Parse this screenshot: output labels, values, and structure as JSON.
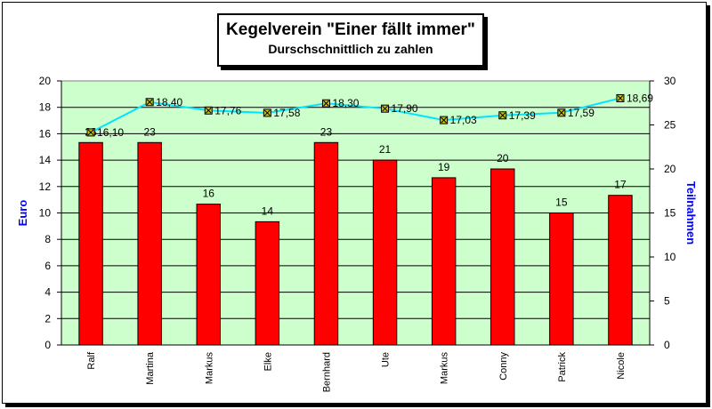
{
  "chart_data": {
    "type": "bar",
    "title": "Kegelverein \"Einer fällt immer\"",
    "subtitle": "Durschschnittlich zu zahlen",
    "categories": [
      "Ralf",
      "Martina",
      "Markus",
      "Elke",
      "Bernhard",
      "Ute",
      "Markus",
      "Conny",
      "Patrick",
      "Nicole"
    ],
    "series": [
      {
        "values": [
          23,
          23,
          16,
          14,
          23,
          21,
          19,
          20,
          15,
          17
        ],
        "axis": "right",
        "type": "bar",
        "color": "#ff0000",
        "labels": [
          "23",
          "23",
          "16",
          "14",
          "23",
          "21",
          "19",
          "20",
          "15",
          "17"
        ]
      },
      {
        "values": [
          16.1,
          18.4,
          17.76,
          17.58,
          18.3,
          17.9,
          17.03,
          17.39,
          17.59,
          18.69
        ],
        "axis": "left",
        "type": "line",
        "color": "#00e5ff",
        "labels": [
          "16,10",
          "18,40",
          "17,76",
          "17,58",
          "18,30",
          "17,90",
          "17,03",
          "17,39",
          "17,59",
          "18,69"
        ]
      }
    ],
    "ylabel": "Euro",
    "ylabel2": "Teilnahmen",
    "ylim": [
      0,
      20
    ],
    "ylim2": [
      0,
      30
    ],
    "yticks": [
      "0",
      "2",
      "4",
      "6",
      "8",
      "10",
      "12",
      "14",
      "16",
      "18",
      "20"
    ],
    "yticks2": [
      "0",
      "5",
      "10",
      "15",
      "20",
      "25",
      "30"
    ],
    "grid": true,
    "plot_background": "#ccffcc",
    "axis_label_color": "#0000ff"
  }
}
